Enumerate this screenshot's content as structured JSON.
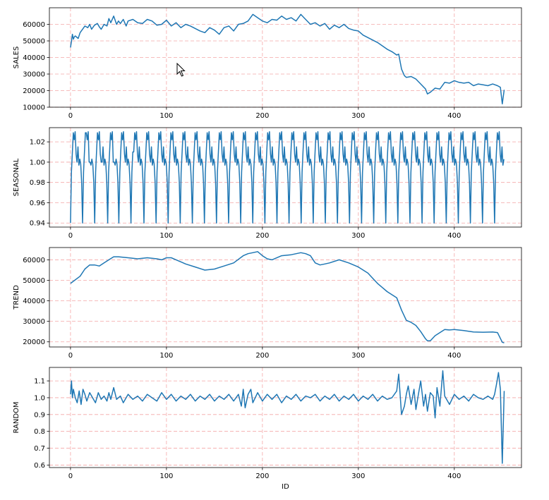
{
  "chart_data": [
    {
      "type": "line",
      "ylabel": "SALES",
      "xlabel": "",
      "xlim": [
        -22,
        470
      ],
      "ylim": [
        10000,
        70000
      ],
      "x_ticks": [
        0,
        100,
        200,
        300,
        400
      ],
      "y_ticks": [
        10000,
        20000,
        30000,
        40000,
        50000,
        60000
      ],
      "grid": true,
      "color": "#1f77b4",
      "series": [
        {
          "x": [
            0,
            1,
            2,
            3,
            4,
            5,
            8,
            10,
            15,
            18,
            20,
            22,
            25,
            28,
            30,
            32,
            35,
            38,
            40,
            42,
            45,
            48,
            50,
            52,
            55,
            58,
            60,
            65,
            70,
            75,
            80,
            85,
            90,
            95,
            100,
            105,
            110,
            115,
            120,
            125,
            130,
            135,
            140,
            145,
            150,
            155,
            160,
            165,
            170,
            175,
            180,
            185,
            190,
            195,
            200,
            205,
            210,
            215,
            220,
            225,
            230,
            235,
            240,
            245,
            250,
            255,
            260,
            265,
            270,
            275,
            280,
            285,
            290,
            295,
            300,
            305,
            310,
            315,
            320,
            325,
            330,
            335,
            340,
            342,
            345,
            348,
            350,
            355,
            360,
            365,
            370,
            372,
            375,
            380,
            385,
            390,
            395,
            400,
            405,
            410,
            415,
            420,
            425,
            430,
            435,
            440,
            445,
            448,
            450,
            452
          ],
          "y": [
            46000,
            50000,
            54000,
            51000,
            52500,
            53000,
            51500,
            55000,
            59000,
            58000,
            60000,
            57000,
            59500,
            60500,
            58500,
            57000,
            60000,
            59000,
            63500,
            61000,
            65000,
            60000,
            62000,
            60500,
            63000,
            59000,
            62000,
            63000,
            61000,
            60500,
            63000,
            62000,
            59500,
            60000,
            62500,
            59000,
            61000,
            58000,
            60000,
            59000,
            57500,
            56000,
            55000,
            58000,
            56500,
            54000,
            58000,
            59000,
            56000,
            60000,
            60500,
            62000,
            66000,
            64000,
            62000,
            61000,
            63000,
            62500,
            65000,
            63000,
            64000,
            62000,
            66000,
            63000,
            60000,
            61000,
            59000,
            60500,
            57000,
            59500,
            58000,
            60000,
            57500,
            56500,
            56000,
            53500,
            52000,
            50500,
            49000,
            47000,
            45000,
            43500,
            41500,
            42000,
            33000,
            29000,
            28000,
            28500,
            27000,
            24000,
            21000,
            18000,
            19000,
            21500,
            21000,
            25000,
            24500,
            26000,
            25000,
            24500,
            25000,
            23000,
            24000,
            23500,
            23000,
            24000,
            23000,
            22000,
            12000,
            20500
          ]
        }
      ]
    },
    {
      "type": "line",
      "ylabel": "SEASONAL",
      "xlabel": "",
      "xlim": [
        -22,
        470
      ],
      "ylim": [
        0.936,
        1.034
      ],
      "x_ticks": [
        0,
        100,
        200,
        300,
        400
      ],
      "y_ticks": [
        "0.94",
        "0.96",
        "0.98",
        "1.00",
        "1.02"
      ],
      "y_tick_values": [
        0.94,
        0.96,
        0.98,
        1.0,
        1.02
      ],
      "grid": true,
      "color": "#1f77b4",
      "period": 12.6,
      "pattern": [
        0.94,
        0.99,
        1.01,
        1.029,
        1.022,
        1.03,
        1.008,
        1.0,
        1.015,
        0.997,
        1.003,
        0.998,
        0.98
      ],
      "x_start": 0,
      "x_end": 452
    },
    {
      "type": "line",
      "ylabel": "TREND",
      "xlabel": "",
      "xlim": [
        -22,
        470
      ],
      "ylim": [
        17500,
        66000
      ],
      "x_ticks": [
        0,
        100,
        200,
        300,
        400
      ],
      "y_ticks": [
        20000,
        30000,
        40000,
        50000,
        60000
      ],
      "grid": true,
      "color": "#1f77b4",
      "series": [
        {
          "x": [
            0,
            10,
            15,
            20,
            25,
            30,
            35,
            40,
            45,
            50,
            60,
            70,
            80,
            90,
            95,
            100,
            105,
            110,
            120,
            130,
            140,
            150,
            160,
            170,
            180,
            185,
            190,
            195,
            200,
            205,
            210,
            220,
            230,
            240,
            245,
            250,
            255,
            260,
            265,
            270,
            280,
            290,
            300,
            310,
            315,
            320,
            325,
            330,
            335,
            340,
            345,
            350,
            355,
            360,
            365,
            370,
            372,
            375,
            380,
            385,
            390,
            395,
            400,
            410,
            420,
            430,
            440,
            445,
            450,
            452
          ],
          "y": [
            48500,
            52000,
            55500,
            57500,
            57500,
            57000,
            58500,
            60000,
            61500,
            61500,
            61000,
            60500,
            61000,
            60500,
            60000,
            61000,
            61000,
            60000,
            58000,
            56500,
            55000,
            55500,
            57000,
            58500,
            62000,
            63000,
            63500,
            64000,
            62000,
            60500,
            60000,
            62000,
            62500,
            63500,
            63000,
            62000,
            58500,
            57500,
            58000,
            58500,
            60000,
            58500,
            56500,
            53500,
            51000,
            48500,
            46500,
            44500,
            43000,
            41500,
            35500,
            30500,
            29500,
            28000,
            25000,
            21500,
            20500,
            20500,
            23000,
            24500,
            26000,
            25800,
            26000,
            25500,
            24800,
            24700,
            24800,
            24500,
            19800,
            19500
          ]
        }
      ]
    },
    {
      "type": "line",
      "ylabel": "RANDOM",
      "xlabel": "ID",
      "xlim": [
        -22,
        470
      ],
      "ylim": [
        0.585,
        1.18
      ],
      "x_ticks": [
        0,
        100,
        200,
        300,
        400
      ],
      "y_ticks": [
        "0.6",
        "0.7",
        "0.8",
        "0.9",
        "1.0",
        "1.1"
      ],
      "y_tick_values": [
        0.6,
        0.7,
        0.8,
        0.9,
        1.0,
        1.1
      ],
      "grid": true,
      "color": "#1f77b4",
      "series": [
        {
          "x": [
            0,
            1,
            2,
            3,
            5,
            7,
            9,
            11,
            13,
            15,
            17,
            20,
            23,
            26,
            29,
            32,
            35,
            38,
            40,
            42,
            45,
            48,
            52,
            55,
            60,
            65,
            70,
            75,
            80,
            85,
            90,
            95,
            100,
            105,
            110,
            115,
            120,
            125,
            130,
            135,
            140,
            145,
            150,
            155,
            160,
            165,
            170,
            175,
            178,
            180,
            182,
            185,
            188,
            190,
            195,
            200,
            205,
            210,
            215,
            220,
            225,
            230,
            235,
            240,
            245,
            250,
            255,
            260,
            265,
            270,
            275,
            280,
            285,
            290,
            295,
            300,
            305,
            310,
            315,
            320,
            325,
            330,
            335,
            340,
            342,
            345,
            348,
            350,
            352,
            355,
            358,
            360,
            362,
            365,
            368,
            370,
            372,
            375,
            378,
            380,
            382,
            385,
            388,
            390,
            395,
            400,
            405,
            410,
            415,
            420,
            425,
            430,
            435,
            440,
            442,
            444,
            446,
            448,
            450,
            452
          ],
          "y": [
            1.02,
            1.1,
            1.0,
            1.05,
            1.0,
            0.97,
            1.04,
            0.96,
            1.05,
            1.02,
            0.98,
            1.03,
            1.0,
            0.97,
            1.03,
            0.99,
            1.01,
            0.98,
            1.03,
            0.99,
            1.06,
            0.99,
            1.01,
            0.97,
            1.02,
            0.99,
            1.01,
            0.98,
            1.02,
            1.0,
            0.98,
            1.03,
            0.99,
            1.02,
            0.98,
            1.01,
            0.99,
            1.02,
            0.98,
            1.01,
            0.99,
            1.02,
            0.98,
            1.01,
            0.99,
            1.02,
            0.98,
            1.02,
            0.95,
            1.05,
            0.94,
            1.02,
            1.05,
            0.97,
            1.03,
            0.98,
            1.02,
            0.99,
            1.02,
            0.97,
            1.01,
            0.99,
            1.02,
            0.98,
            1.01,
            1.0,
            1.02,
            0.98,
            1.01,
            0.99,
            1.02,
            0.98,
            1.01,
            0.99,
            1.02,
            0.98,
            1.01,
            0.99,
            1.02,
            0.98,
            1.01,
            0.99,
            1.0,
            1.04,
            1.14,
            0.9,
            0.95,
            1.02,
            1.07,
            0.96,
            1.05,
            0.93,
            1.0,
            1.1,
            0.95,
            1.02,
            0.92,
            1.03,
            1.01,
            0.88,
            1.06,
            0.95,
            1.16,
            1.01,
            0.96,
            1.02,
            0.99,
            1.01,
            0.98,
            1.02,
            1.0,
            0.99,
            1.01,
            0.99,
            1.02,
            1.08,
            1.15,
            1.05,
            0.61,
            1.04
          ]
        }
      ]
    }
  ]
}
